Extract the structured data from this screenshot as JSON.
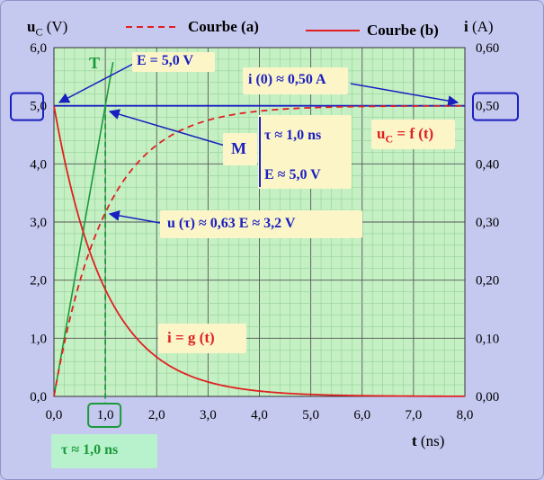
{
  "chart_data": {
    "type": "line",
    "y_left_label": {
      "main": "u",
      "sub": "C",
      "unit": " (V)"
    },
    "y_right_label": {
      "main": "i",
      "unit": " (A)"
    },
    "x_label": {
      "main": "t",
      "unit": " (ns)"
    },
    "legend": {
      "a": "Courbe (a)",
      "b": "Courbe (b)"
    },
    "xlim": [
      0,
      8
    ],
    "ylim_left": [
      0,
      6
    ],
    "ylim_right": [
      0,
      0.6
    ],
    "x_ticks": [
      "0,0",
      "1,0",
      "2,0",
      "3,0",
      "4,0",
      "5,0",
      "6,0",
      "7,0",
      "8,0"
    ],
    "y_left_ticks": [
      "0,0",
      "1,0",
      "2,0",
      "3,0",
      "4,0",
      "5,0",
      "6,0"
    ],
    "y_right_ticks": [
      "0,00",
      "0,10",
      "0,20",
      "0,30",
      "0,40",
      "0,50",
      "0,60"
    ],
    "highlighted_ticks": {
      "x": "1,0",
      "y_left": "5,0",
      "y_right": "0,50"
    },
    "grid": true,
    "series": [
      {
        "name": "Courbe (a)",
        "style": "dashed",
        "color": "#e02020",
        "formula": "u = 5(1 - e^(-t/1))",
        "x": [
          0,
          0.5,
          1,
          1.5,
          2,
          3,
          4,
          5,
          6,
          7,
          8
        ],
        "y": [
          0,
          1.97,
          3.16,
          3.88,
          4.32,
          4.75,
          4.91,
          4.97,
          4.99,
          5.0,
          5.0
        ]
      },
      {
        "name": "Courbe (b)",
        "style": "solid",
        "color": "#e02020",
        "formula": "i = 0.5 e^(-t/1)",
        "x": [
          0,
          0.5,
          1,
          1.5,
          2,
          3,
          4,
          5,
          6,
          7,
          8
        ],
        "y_right": [
          0.5,
          0.303,
          0.184,
          0.112,
          0.068,
          0.025,
          0.009,
          0.003,
          0.001,
          0.0,
          0.0
        ]
      }
    ],
    "reference_lines": {
      "asymptote_y": 5.0,
      "tau_x": 1.0,
      "tangent": {
        "from": [
          0,
          0
        ],
        "to": [
          1.15,
          5.75
        ]
      }
    },
    "annotations": {
      "tangent_label": "T",
      "e_label": "E = 5,0 V",
      "i0_label": "i (0) ≈ 0,50 A",
      "uc_label": {
        "main": "u",
        "sub": "C",
        "rest": " = f (t)"
      },
      "m_label": "M",
      "tau_line": "τ ≈ 1,0 ns",
      "e_line": "E ≈ 5,0 V",
      "u_tau_label": "u (τ) ≈ 0,63 E ≈ 3,2 V",
      "ig_label": "i = g (t)",
      "tau_bottom": "τ  ≈ 1,0 ns"
    }
  }
}
